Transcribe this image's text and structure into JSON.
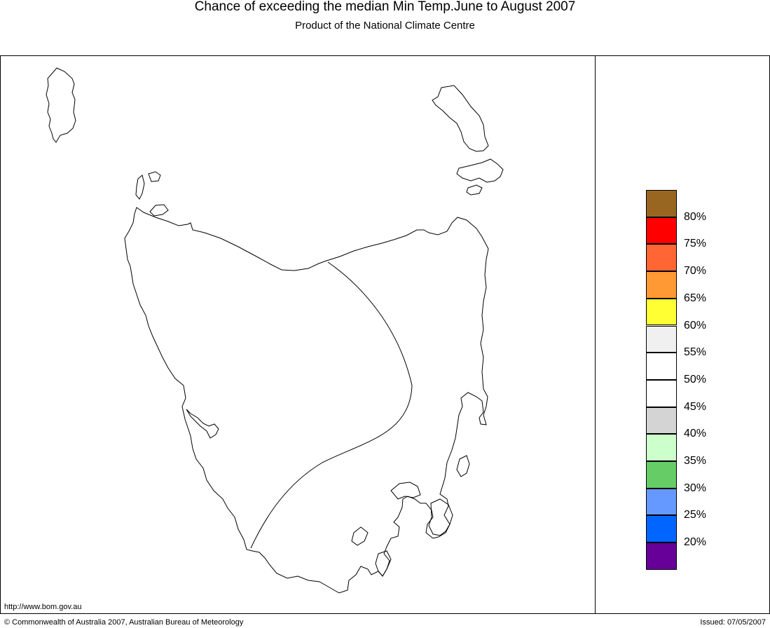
{
  "title": "Chance of exceeding the median Min Temp.June to August 2007",
  "subtitle": "Product of the National Climate Centre",
  "legend": {
    "colors": [
      "#996622",
      "#ff0000",
      "#ff6633",
      "#ff9933",
      "#ffff33",
      "#f0f0f0",
      "#ffffff",
      "#ffffff",
      "#d4d4d4",
      "#ccffcc",
      "#66cc66",
      "#6699ff",
      "#0066ff",
      "#660099"
    ],
    "labels": [
      "80%",
      "75%",
      "70%",
      "65%",
      "60%",
      "55%",
      "50%",
      "45%",
      "40%",
      "35%",
      "30%",
      "25%",
      "20%"
    ]
  },
  "footer": {
    "url": "http://www.bom.gov.au",
    "copyright": "© Commonwealth of Australia 2007, Australian Bureau of Meteorology",
    "issued": "Issued: 07/05/2007"
  }
}
